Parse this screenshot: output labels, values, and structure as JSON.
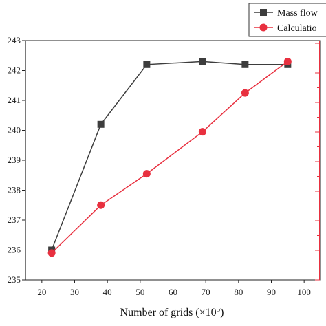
{
  "chart_data": {
    "type": "line",
    "xlabel": "Number of grids (×10",
    "xlabel_sup": "5",
    "xlabel_close": ")",
    "xlim": [
      15,
      105
    ],
    "xticks": [
      20,
      30,
      40,
      50,
      60,
      70,
      80,
      90,
      100
    ],
    "ylim": [
      235,
      243
    ],
    "yticks": [
      235,
      236,
      237,
      238,
      239,
      240,
      241,
      242,
      243
    ],
    "grid": false,
    "legend_position": "top-right",
    "series": [
      {
        "name": "Mass flow",
        "marker": "square",
        "color": "#3d3d3d",
        "x": [
          23,
          38,
          52,
          69,
          82,
          95
        ],
        "y": [
          236.0,
          240.2,
          242.2,
          242.3,
          242.2,
          242.2
        ]
      },
      {
        "name": "Calculatio",
        "marker": "circle",
        "color": "#e8303f",
        "axis": "right",
        "x": [
          23,
          38,
          52,
          69,
          82,
          95
        ],
        "y": [
          235.9,
          237.5,
          238.55,
          239.95,
          241.25,
          242.3
        ]
      }
    ]
  }
}
